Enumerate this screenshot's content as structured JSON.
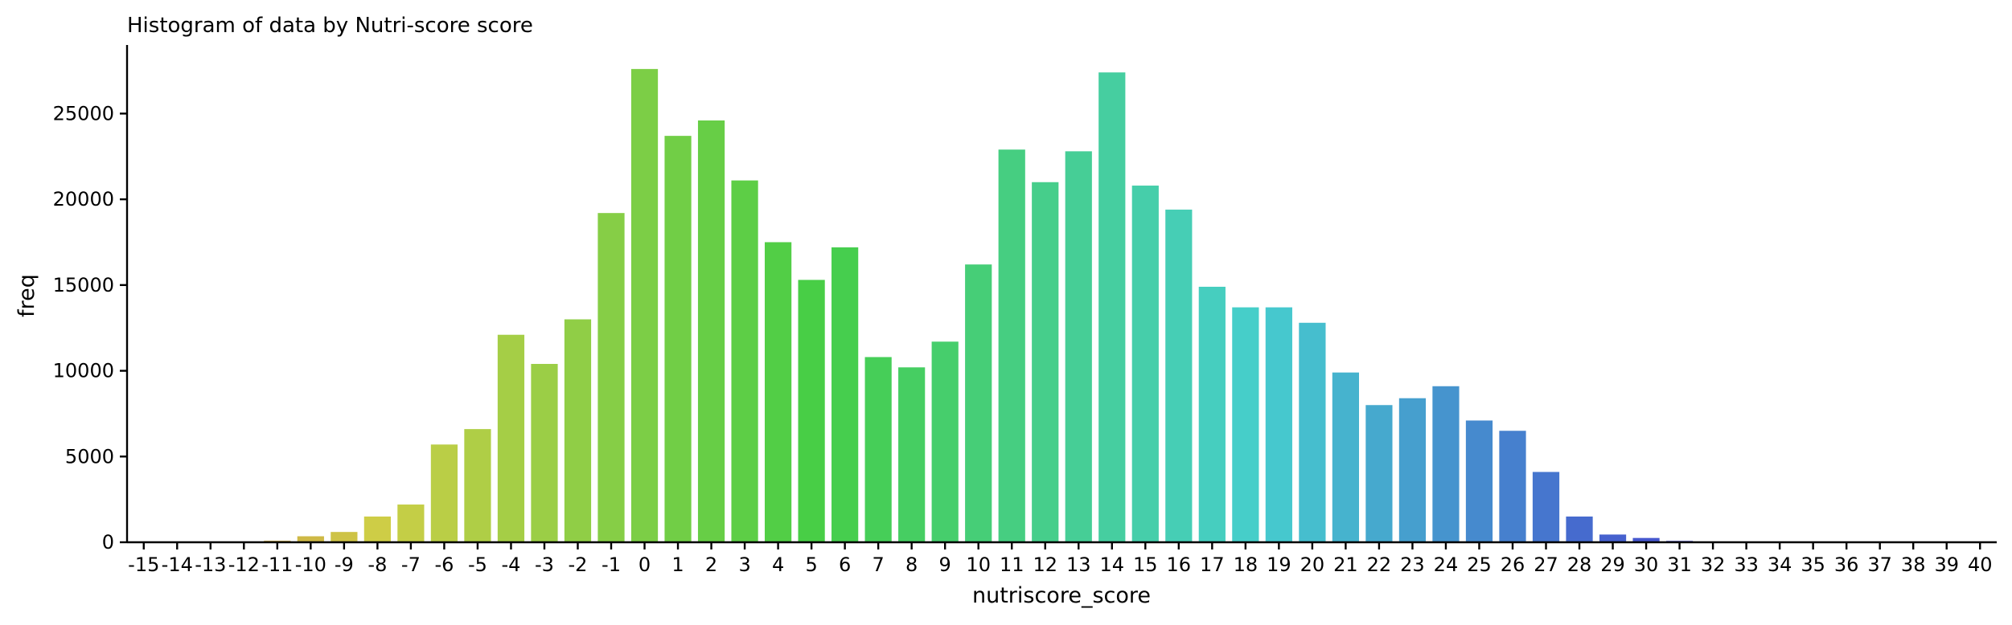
{
  "chart_data": {
    "type": "bar",
    "title": "Histogram of data by Nutri-score score",
    "xlabel": "nutriscore_score",
    "ylabel": "freq",
    "categories": [
      "-15",
      "-14",
      "-13",
      "-12",
      "-11",
      "-10",
      "-9",
      "-8",
      "-7",
      "-6",
      "-5",
      "-4",
      "-3",
      "-2",
      "-1",
      "0",
      "1",
      "2",
      "3",
      "4",
      "5",
      "6",
      "7",
      "8",
      "9",
      "10",
      "11",
      "12",
      "13",
      "14",
      "15",
      "16",
      "17",
      "18",
      "19",
      "20",
      "21",
      "22",
      "23",
      "24",
      "25",
      "26",
      "27",
      "28",
      "29",
      "30",
      "31",
      "32",
      "33",
      "34",
      "35",
      "36",
      "37",
      "38",
      "39",
      "40"
    ],
    "values": [
      5,
      10,
      20,
      40,
      90,
      350,
      600,
      1500,
      2200,
      5700,
      6600,
      12100,
      10400,
      13000,
      19200,
      27600,
      23700,
      24600,
      21100,
      17500,
      15300,
      17200,
      10800,
      10200,
      11700,
      16200,
      22900,
      21000,
      22800,
      27400,
      20800,
      19400,
      14900,
      13700,
      13700,
      12800,
      9900,
      8000,
      8400,
      9100,
      7100,
      6500,
      4100,
      1500,
      450,
      250,
      80,
      30,
      15,
      10,
      6,
      4,
      3,
      2,
      1,
      1
    ],
    "yticks": [
      0,
      5000,
      10000,
      15000,
      20000,
      25000
    ],
    "ylim": [
      0,
      29000
    ],
    "grid": false,
    "legend": "none",
    "palette": "husl gradient (orange → olive → green → teal → blue → purple)"
  }
}
